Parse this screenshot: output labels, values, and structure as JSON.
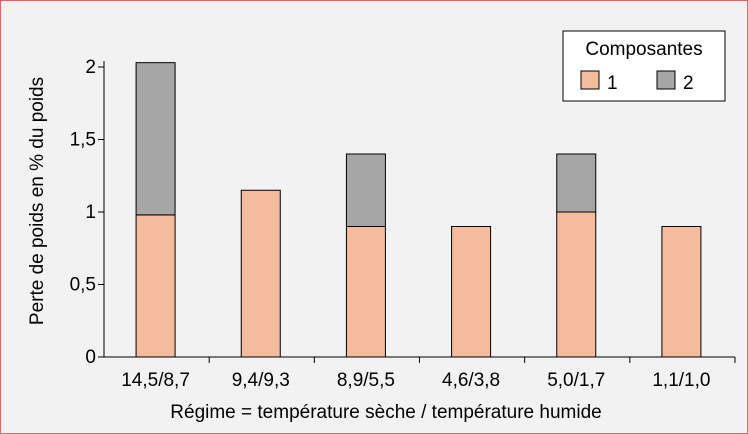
{
  "chart_data": {
    "type": "bar",
    "stacked": true,
    "categories": [
      "14,5/8,7",
      "9,4/9,3",
      "8,9/5,5",
      "4,6/3,8",
      "5,0/1,7",
      "1,1/1,0"
    ],
    "series": [
      {
        "name": "1",
        "values": [
          0.98,
          1.15,
          0.9,
          0.9,
          1.0,
          0.9
        ],
        "color": "#f4bc9c"
      },
      {
        "name": "2",
        "values": [
          1.05,
          0,
          0.5,
          0,
          0.4,
          0
        ],
        "color": "#a6a6a6"
      }
    ],
    "yticks": [
      "0",
      "0,5",
      "1",
      "1,5",
      "2"
    ],
    "ylim": [
      0,
      2.05
    ],
    "ylabel": "Perte de poids en % du poids",
    "xlabel": "Régime = température sèche  / température humide",
    "legend": {
      "title": "Composantes",
      "position": "top-right"
    },
    "grid": false
  }
}
